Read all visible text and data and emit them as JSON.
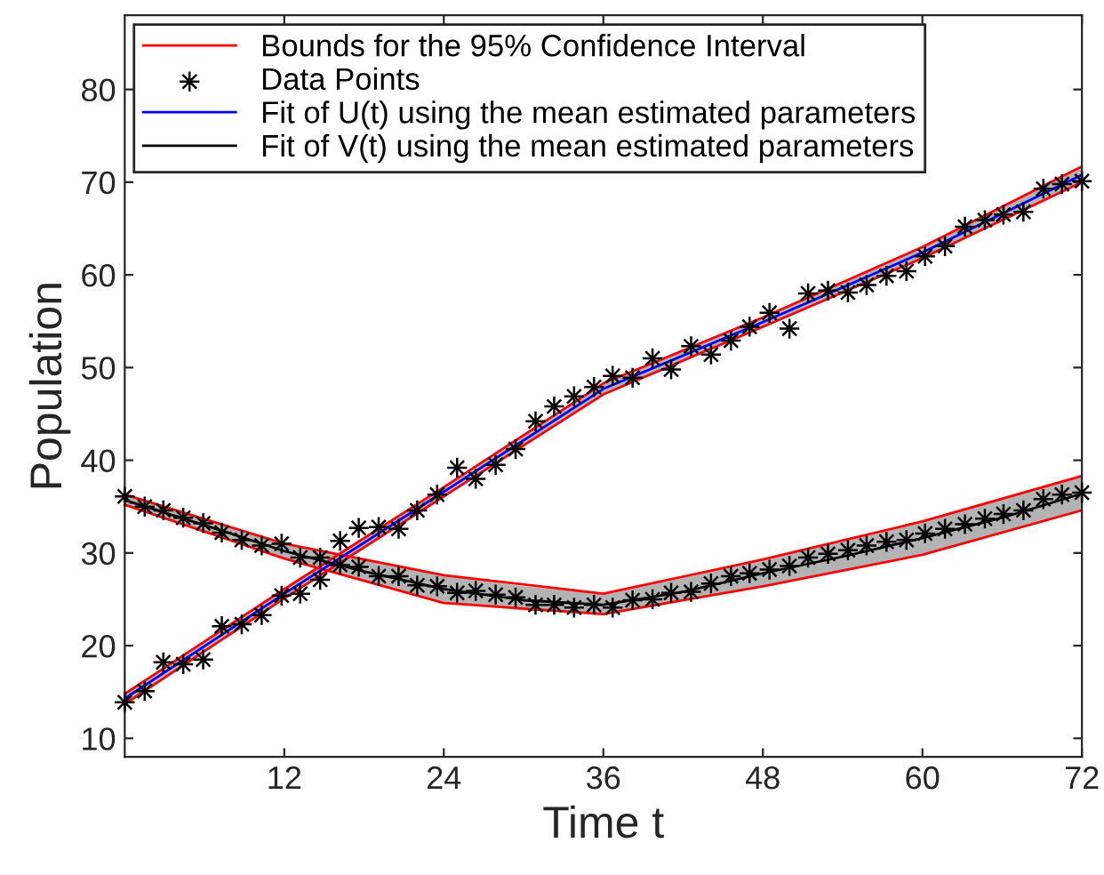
{
  "chart_data": {
    "type": "line",
    "xlabel": "Time t",
    "ylabel": "Population",
    "xlim": [
      0,
      72
    ],
    "xticks": [
      12,
      24,
      36,
      48,
      60,
      72
    ],
    "ylim": [
      8,
      88
    ],
    "yticks": [
      10,
      20,
      30,
      40,
      50,
      60,
      70,
      80
    ],
    "grid": false,
    "legend": "top left",
    "series": [
      {
        "name": "Bounds for the 95% Confidence Interval",
        "color": "#ff0000",
        "x": [
          0,
          12,
          24,
          36,
          48,
          60,
          72
        ],
        "values": [
          13.7,
          25.1,
          36.1,
          47.1,
          54.4,
          61.8,
          70.0
        ]
      },
      {
        "color": "#ff0000",
        "x": [
          0,
          12,
          24,
          36,
          48,
          60,
          72
        ],
        "values": [
          14.8,
          26.1,
          37.1,
          48.3,
          55.4,
          63.0,
          71.7
        ]
      },
      {
        "color": "#ff0000",
        "x": [
          0,
          12,
          24,
          36,
          48,
          60,
          72
        ],
        "values": [
          35.2,
          29.4,
          24.6,
          23.4,
          26.4,
          29.8,
          34.6
        ]
      },
      {
        "color": "#ff0000",
        "x": [
          0,
          12,
          24,
          36,
          48,
          60,
          72
        ],
        "values": [
          36.3,
          31.0,
          27.6,
          25.6,
          29.3,
          33.4,
          38.3
        ]
      },
      {
        "name": "Data Points",
        "type": "scatter",
        "color": "#000000",
        "marker": "cross",
        "x": [
          0,
          1.5,
          2.9,
          4.4,
          5.9,
          7.3,
          8.8,
          10.3,
          11.8,
          13.2,
          14.7,
          16.2,
          17.6,
          19.1,
          20.6,
          22.0,
          23.5,
          25.0,
          26.4,
          27.9,
          29.4,
          30.9,
          32.3,
          33.8,
          35.3,
          36.7,
          38.2,
          39.7,
          41.1,
          42.6,
          44.1,
          45.6,
          47.0,
          48.5,
          50.0,
          51.4,
          52.9,
          54.4,
          55.8,
          57.3,
          58.8,
          60.2,
          61.7,
          63.2,
          64.7,
          66.1,
          67.6,
          69.1,
          70.5,
          72.0
        ],
        "values": [
          13.9,
          15.1,
          18.2,
          18.0,
          18.5,
          22.1,
          22.3,
          23.3,
          25.4,
          25.6,
          27.1,
          31.3,
          32.7,
          32.8,
          32.6,
          34.6,
          36.3,
          39.2,
          38.0,
          39.5,
          41.2,
          44.2,
          45.8,
          46.9,
          47.9,
          49.1,
          48.9,
          51.0,
          49.8,
          52.3,
          51.4,
          52.9,
          54.4,
          55.9,
          54.2,
          58.0,
          58.3,
          58.1,
          58.9,
          59.9,
          60.4,
          62.0,
          63.1,
          65.2,
          65.9,
          66.5,
          66.8,
          69.3,
          69.8,
          70.1
        ]
      },
      {
        "type": "scatter",
        "color": "#000000",
        "marker": "cross",
        "x": [
          0,
          1.5,
          2.9,
          4.4,
          5.9,
          7.3,
          8.8,
          10.3,
          11.8,
          13.2,
          14.7,
          16.2,
          17.6,
          19.1,
          20.6,
          22.0,
          23.5,
          25.0,
          26.4,
          27.9,
          29.4,
          30.9,
          32.3,
          33.8,
          35.3,
          36.7,
          38.2,
          39.7,
          41.1,
          42.6,
          44.1,
          45.6,
          47.0,
          48.5,
          50.0,
          51.4,
          52.9,
          54.4,
          55.8,
          57.3,
          58.8,
          60.2,
          61.7,
          63.2,
          64.7,
          66.1,
          67.6,
          69.1,
          70.5,
          72.0
        ],
        "values": [
          36.1,
          35.0,
          34.6,
          33.8,
          33.2,
          32.2,
          31.4,
          30.8,
          31.0,
          29.5,
          29.5,
          28.7,
          28.5,
          27.5,
          27.5,
          26.5,
          26.4,
          25.7,
          25.9,
          25.5,
          25.2,
          24.4,
          24.4,
          24.1,
          24.4,
          24.1,
          24.9,
          25.0,
          25.7,
          25.8,
          26.7,
          27.5,
          27.8,
          28.2,
          28.6,
          29.5,
          29.9,
          30.3,
          30.8,
          31.2,
          31.4,
          32.1,
          32.6,
          33.1,
          33.7,
          34.2,
          34.6,
          35.8,
          36.3,
          36.5
        ]
      },
      {
        "name": "Fit of U(t) using the mean estimated parameters",
        "color": "#0000ff",
        "x": [
          0,
          12,
          24,
          36,
          48,
          60,
          72
        ],
        "values": [
          14.3,
          25.6,
          36.6,
          47.7,
          54.9,
          62.4,
          70.8
        ],
        "lower": [
          13.7,
          25.1,
          36.1,
          47.1,
          54.4,
          61.8,
          70.0
        ],
        "upper": [
          14.8,
          26.1,
          37.1,
          48.3,
          55.4,
          63.0,
          71.7
        ]
      },
      {
        "name": "Fit of V(t) using the mean estimated parameters",
        "color": "#000000",
        "x": [
          0,
          6,
          12,
          18,
          24,
          30,
          36,
          42,
          48,
          54,
          60,
          66,
          72
        ],
        "values": [
          35.7,
          33.0,
          30.2,
          28.0,
          26.1,
          24.9,
          24.4,
          25.8,
          27.8,
          29.6,
          31.6,
          33.8,
          36.4
        ],
        "lower": [
          35.2,
          32.2,
          29.4,
          26.9,
          24.6,
          23.8,
          23.4,
          24.8,
          26.4,
          28.0,
          29.8,
          32.1,
          34.6
        ],
        "upper": [
          36.3,
          33.6,
          31.0,
          29.2,
          27.6,
          26.4,
          25.6,
          27.3,
          29.3,
          31.3,
          33.4,
          35.8,
          38.3
        ]
      }
    ]
  }
}
